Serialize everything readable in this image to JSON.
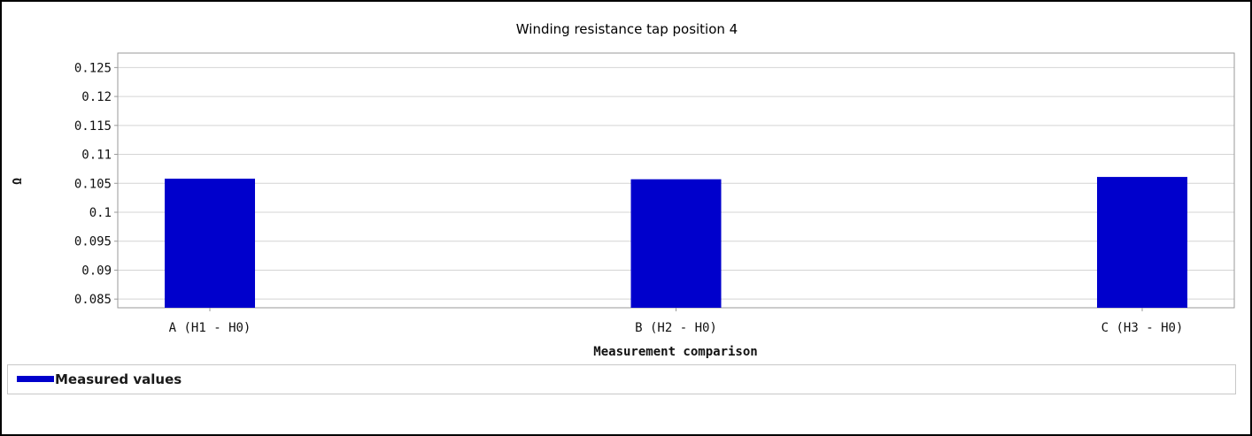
{
  "chart_data": {
    "type": "bar",
    "title": "Winding resistance tap position 4",
    "xlabel": "Measurement comparison",
    "ylabel": "Ω",
    "categories": [
      "A (H1 - H0)",
      "B (H2 - H0)",
      "C (H3 - H0)"
    ],
    "series": [
      {
        "name": "Measured values",
        "values": [
          0.1058,
          0.1057,
          0.1061
        ]
      }
    ],
    "ylim": [
      0.0835,
      0.1275
    ],
    "yticks": [
      "0.085",
      "0.09",
      "0.095",
      "0.1",
      "0.105",
      "0.11",
      "0.115",
      "0.12",
      "0.125"
    ],
    "grid": true,
    "legend": "bottom-left",
    "colors": {
      "bar": "#0000CC",
      "grid": "#d4d4d4",
      "axis": "#9a9a9a"
    }
  },
  "legend": {
    "label": "Measured values"
  }
}
